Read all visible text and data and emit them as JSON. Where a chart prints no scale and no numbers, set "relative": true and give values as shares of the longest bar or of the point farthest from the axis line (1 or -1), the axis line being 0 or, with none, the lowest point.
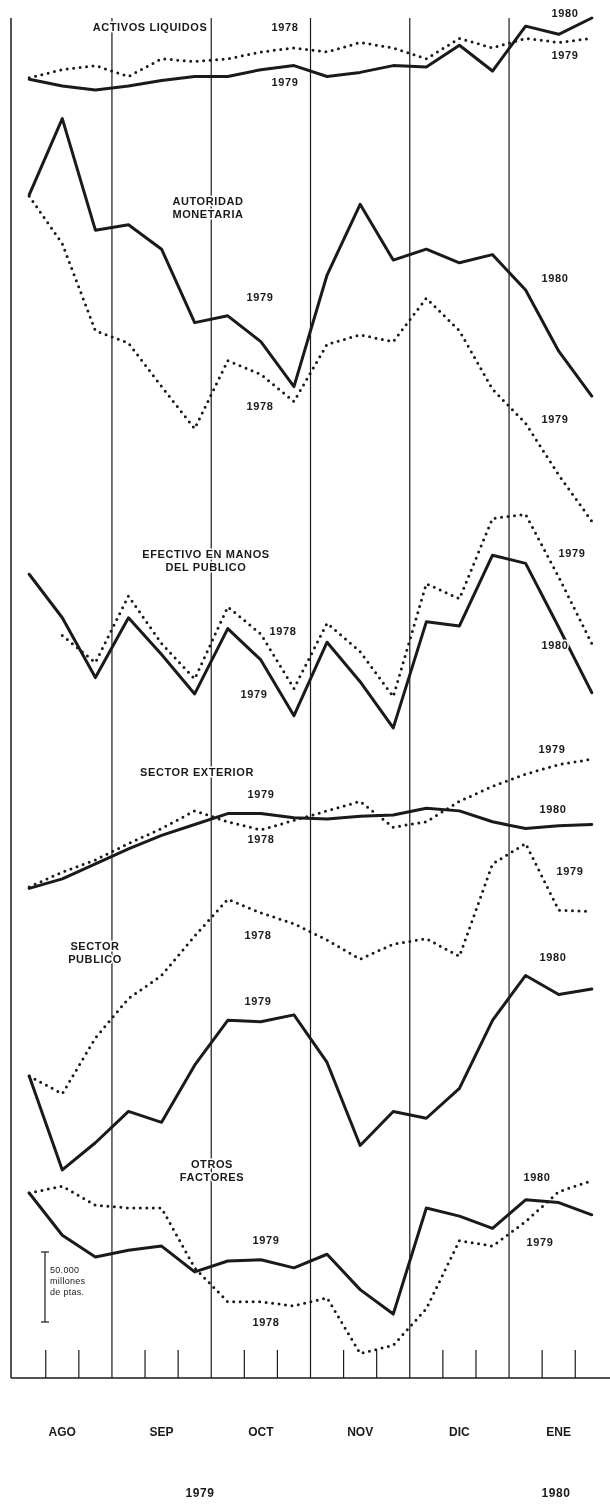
{
  "chart_data": {
    "type": "line",
    "relative": true,
    "categories": [
      null,
      "AGO",
      null,
      null,
      "SEP",
      null,
      null,
      "OCT",
      null,
      null,
      "NOV",
      null,
      null,
      "DIC",
      null,
      null,
      "ENE",
      null
    ],
    "series": [
      {
        "color": "#1a1a1a",
        "line_style": "solid",
        "values": [
          0.955,
          0.95,
          0.947,
          0.95,
          0.954,
          0.957,
          0.957,
          0.962,
          0.965,
          0.957,
          0.96,
          0.965,
          0.964,
          0.98,
          0.961,
          0.994,
          0.988,
          1.0
        ]
      },
      {
        "color": "#1a1a1a",
        "line_style": "dotted",
        "values": [
          0.956,
          0.962,
          0.965,
          0.957,
          0.97,
          0.968,
          0.97,
          0.975,
          0.978,
          0.975,
          0.982,
          0.978,
          0.97,
          0.985,
          0.978,
          0.985,
          0.982,
          0.985
        ]
      },
      {
        "color": "#1a1a1a",
        "line_style": "solid",
        "values": [
          0.87,
          0.926,
          0.844,
          0.848,
          0.83,
          0.776,
          0.781,
          0.762,
          0.729,
          0.811,
          0.863,
          0.822,
          0.83,
          0.82,
          0.826,
          0.8,
          0.755,
          0.722
        ]
      },
      {
        "color": "#1a1a1a",
        "line_style": "dotted",
        "values": [
          0.869,
          0.834,
          0.77,
          0.761,
          0.729,
          0.698,
          0.748,
          0.738,
          0.718,
          0.76,
          0.767,
          0.762,
          0.794,
          0.77,
          0.727,
          0.702,
          0.664,
          0.63
        ]
      },
      {
        "color": "#1a1a1a",
        "line_style": "solid",
        "values": [
          0.591,
          0.559,
          0.515,
          0.559,
          0.532,
          0.503,
          0.551,
          0.528,
          0.487,
          0.541,
          0.512,
          0.478,
          0.556,
          0.553,
          0.605,
          0.599,
          0.552,
          0.504
        ]
      },
      {
        "color": "#1a1a1a",
        "line_style": "dotted",
        "values": [
          null,
          0.546,
          0.526,
          0.575,
          0.54,
          0.514,
          0.567,
          0.547,
          0.507,
          0.555,
          0.534,
          0.501,
          0.584,
          0.573,
          0.632,
          0.635,
          0.589,
          0.54
        ]
      },
      {
        "color": "#1a1a1a",
        "line_style": "solid",
        "values": [
          0.36,
          0.367,
          0.378,
          0.389,
          0.399,
          0.407,
          0.415,
          0.415,
          0.412,
          0.411,
          0.413,
          0.414,
          0.419,
          0.417,
          0.409,
          0.404,
          0.406,
          0.407
        ]
      },
      {
        "color": "#1a1a1a",
        "line_style": "dotted",
        "values": [
          0.361,
          0.372,
          0.381,
          0.393,
          0.404,
          0.417,
          0.409,
          0.403,
          0.41,
          0.417,
          0.424,
          0.405,
          0.409,
          0.424,
          0.435,
          0.444,
          0.451,
          0.455
        ]
      },
      {
        "color": "#1a1a1a",
        "line_style": "solid",
        "values": [
          0.222,
          0.153,
          0.173,
          0.196,
          0.188,
          0.23,
          0.263,
          0.262,
          0.267,
          0.232,
          0.171,
          0.196,
          0.191,
          0.213,
          0.263,
          0.296,
          0.282,
          0.286
        ]
      },
      {
        "color": "#1a1a1a",
        "line_style": "dotted",
        "values": [
          0.222,
          0.209,
          0.25,
          0.279,
          0.296,
          0.325,
          0.352,
          0.342,
          0.334,
          0.322,
          0.308,
          0.319,
          0.323,
          0.31,
          0.378,
          0.393,
          0.344,
          0.343
        ]
      },
      {
        "color": "#1a1a1a",
        "line_style": "solid",
        "values": [
          0.136,
          0.105,
          0.089,
          0.094,
          0.097,
          0.078,
          0.086,
          0.087,
          0.081,
          0.091,
          0.065,
          0.047,
          0.125,
          0.119,
          0.11,
          0.131,
          0.129,
          0.12
        ]
      },
      {
        "color": "#1a1a1a",
        "line_style": "dotted",
        "values": [
          0.136,
          0.141,
          0.127,
          0.125,
          0.125,
          0.081,
          0.056,
          0.056,
          0.053,
          0.059,
          0.018,
          0.024,
          0.051,
          0.101,
          0.097,
          0.115,
          0.137,
          0.145
        ]
      }
    ],
    "annotations": [
      "ACTIVOS LIQUIDOS",
      "1978",
      "1979",
      "1980",
      "1979",
      "AUTORIDAD\nMONETARIA",
      "1979",
      "1978",
      "1980",
      "1979",
      "EFECTIVO EN MANOS\nDEL PUBLICO",
      "1978",
      "1979",
      "1979",
      "1980",
      "SECTOR EXTERIOR",
      "1979",
      "1978",
      "1979",
      "1980",
      "1979",
      "SECTOR\nPUBLICO",
      "1978",
      "1980",
      "1979",
      "OTROS\nFACTORES",
      "1980",
      "1979",
      "1979",
      "1978",
      "50.000\nmillones\nde ptas.",
      "1979",
      "1980"
    ]
  }
}
